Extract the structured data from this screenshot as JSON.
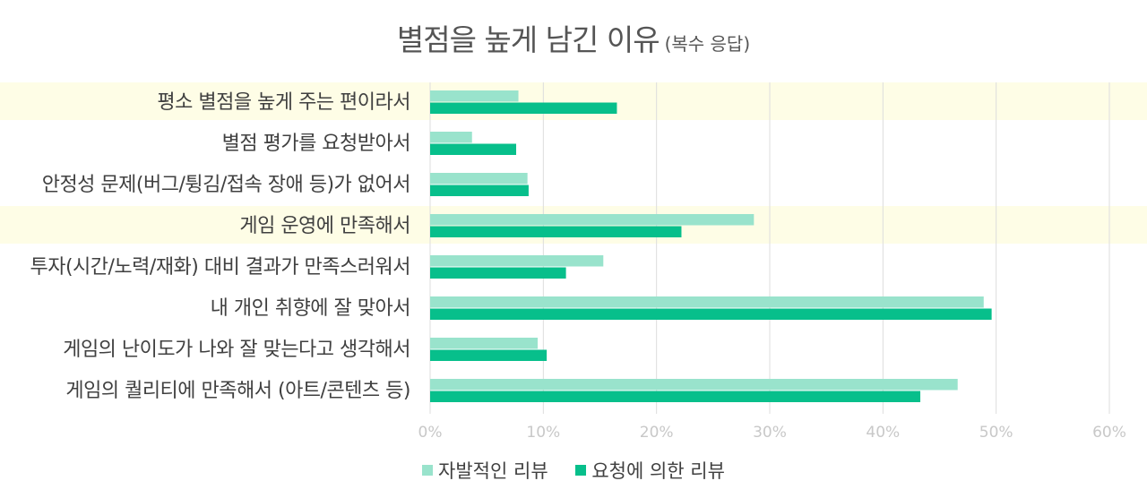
{
  "title": "별점을 높게 남긴 이유",
  "subtitle": "(복수 응답)",
  "colors": {
    "series1": "#99e3cc",
    "series2": "#07bf8b",
    "highlight": "#fefde6",
    "grid": "#dddddd"
  },
  "chart_data": {
    "type": "bar",
    "orientation": "horizontal",
    "title": "별점을 높게 남긴 이유",
    "subtitle": "(복수 응답)",
    "categories": [
      "평소 별점을 높게 주는 편이라서",
      "별점 평가를 요청받아서",
      "안정성 문제(버그/튕김/접속 장애 등)가 없어서",
      "게임 운영에 만족해서",
      "투자(시간/노력/재화) 대비 결과가 만족스러워서",
      "내 개인 취향에 잘 맞아서",
      "게임의 난이도가 나와 잘 맞는다고 생각해서",
      "게임의 퀄리티에 만족해서 (아트/콘텐츠 등)"
    ],
    "highlighted_categories": [
      0,
      3
    ],
    "series": [
      {
        "name": "자발적인 리뷰",
        "values": [
          7.8,
          3.7,
          8.6,
          28.6,
          15.3,
          48.9,
          9.5,
          46.6
        ]
      },
      {
        "name": "요청에 의한 리뷰",
        "values": [
          16.5,
          7.6,
          8.7,
          22.2,
          12.0,
          49.6,
          10.3,
          43.3
        ]
      }
    ],
    "xlim": [
      0,
      60
    ],
    "ticks": [
      "0%",
      "10%",
      "20%",
      "30%",
      "40%",
      "50%",
      "60%"
    ],
    "tick_values": [
      0,
      10,
      20,
      30,
      40,
      50,
      60
    ],
    "grid": true,
    "legend_position": "bottom"
  }
}
